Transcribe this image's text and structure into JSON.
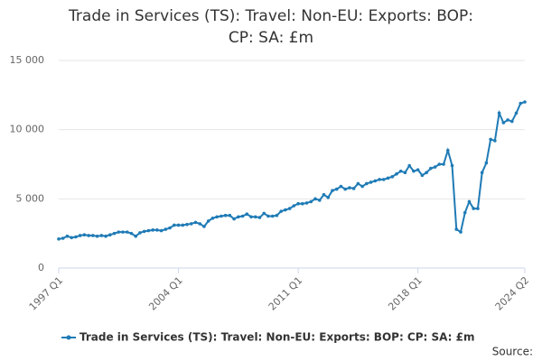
{
  "chart_data": {
    "type": "line",
    "title": "Trade in Services (TS): Travel: Non-EU: Exports: BOP: CP: SA: £m",
    "categories": [
      "1997 Q1",
      null,
      null,
      null,
      null,
      null,
      null,
      null,
      null,
      null,
      null,
      null,
      null,
      null,
      null,
      null,
      null,
      null,
      null,
      null,
      null,
      null,
      null,
      null,
      null,
      null,
      null,
      null,
      "2004 Q1",
      null,
      null,
      null,
      null,
      null,
      null,
      null,
      null,
      null,
      null,
      null,
      null,
      null,
      null,
      null,
      null,
      null,
      null,
      null,
      null,
      null,
      null,
      null,
      null,
      null,
      null,
      null,
      "2011 Q1",
      null,
      null,
      null,
      null,
      null,
      null,
      null,
      null,
      null,
      null,
      null,
      null,
      null,
      null,
      null,
      null,
      null,
      null,
      null,
      null,
      null,
      null,
      null,
      null,
      null,
      null,
      null,
      "2018 Q1",
      null,
      null,
      null,
      null,
      null,
      null,
      null,
      null,
      null,
      null,
      null,
      null,
      null,
      null,
      null,
      null,
      null,
      null,
      null,
      null,
      null,
      null,
      null,
      null,
      "2024 Q2"
    ],
    "series": [
      {
        "name": "Trade in Services (TS): Travel: Non-EU: Exports: BOP: CP: SA: £m",
        "color": "#1f7bb6",
        "values": [
          2100,
          2150,
          2300,
          2200,
          2250,
          2350,
          2400,
          2350,
          2350,
          2300,
          2350,
          2300,
          2400,
          2500,
          2600,
          2600,
          2600,
          2500,
          2300,
          2550,
          2650,
          2700,
          2750,
          2750,
          2700,
          2800,
          2900,
          3100,
          3100,
          3100,
          3150,
          3200,
          3300,
          3200,
          3000,
          3400,
          3600,
          3700,
          3750,
          3800,
          3800,
          3550,
          3700,
          3750,
          3900,
          3700,
          3700,
          3650,
          3950,
          3750,
          3750,
          3800,
          4100,
          4200,
          4300,
          4500,
          4650,
          4650,
          4700,
          4800,
          5000,
          4900,
          5300,
          5100,
          5600,
          5700,
          5900,
          5700,
          5800,
          5750,
          6100,
          5900,
          6100,
          6200,
          6300,
          6400,
          6400,
          6500,
          6600,
          6800,
          7000,
          6900,
          7400,
          7000,
          7100,
          6700,
          6900,
          7200,
          7300,
          7500,
          7500,
          8500,
          7400,
          2800,
          2600,
          4000,
          4800,
          4300,
          4300,
          6900,
          7600,
          9300,
          9200,
          11200,
          10500,
          10700,
          10600,
          11200,
          11900,
          12000
        ]
      }
    ],
    "ylim": [
      0,
      15000
    ],
    "yticks": [
      0,
      {
        "value": 5000,
        "label": "5 000"
      },
      {
        "value": 10000,
        "label": "10 000"
      },
      {
        "value": 15000,
        "label": "15 000"
      }
    ],
    "grid": true,
    "source": "Source:"
  }
}
